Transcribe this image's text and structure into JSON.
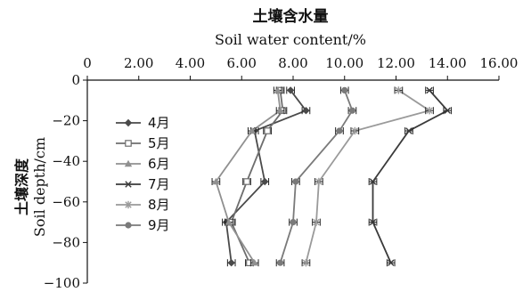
{
  "chart_data": {
    "type": "line",
    "title": "土壤含水量",
    "subtitle": "Soil water content/%",
    "ylabel_cn": "土壤深度",
    "ylabel_en": "Soil depth/cm",
    "xlim": [
      0,
      16
    ],
    "ylim": [
      -100,
      0
    ],
    "x_ticks": [
      0,
      2,
      4,
      6,
      8,
      10,
      12,
      14,
      16
    ],
    "x_tick_labels": [
      "0",
      "2.00",
      "4.00",
      "6.00",
      "8.00",
      "10.00",
      "12.00",
      "14.00",
      "16.00"
    ],
    "y_ticks": [
      0,
      -20,
      -40,
      -60,
      -80,
      -100
    ],
    "y_tick_labels": [
      "0",
      "−20",
      "−40",
      "−60",
      "−80",
      "−100"
    ],
    "x_axis_position": "top",
    "grid": false,
    "legend_position": "left",
    "error_bar": 0.15,
    "series": [
      {
        "name": "4月",
        "marker": "diamond",
        "color": "#4a4a4a",
        "points": [
          [
            7.9,
            -5
          ],
          [
            8.5,
            -15
          ],
          [
            6.5,
            -25
          ],
          [
            6.9,
            -50
          ],
          [
            5.4,
            -70
          ],
          [
            5.6,
            -90
          ]
        ]
      },
      {
        "name": "5月",
        "marker": "square",
        "color": "#6e6e6e",
        "points": [
          [
            7.5,
            -5
          ],
          [
            7.6,
            -15
          ],
          [
            7.0,
            -25
          ],
          [
            6.2,
            -50
          ],
          [
            5.6,
            -70
          ],
          [
            6.3,
            -90
          ]
        ]
      },
      {
        "name": "6月",
        "marker": "triangle",
        "color": "#909090",
        "points": [
          [
            7.4,
            -5
          ],
          [
            7.5,
            -15
          ],
          [
            6.4,
            -25
          ],
          [
            5.0,
            -50
          ],
          [
            5.5,
            -70
          ],
          [
            6.5,
            -90
          ]
        ]
      },
      {
        "name": "7月",
        "marker": "x",
        "color": "#3a3a3a",
        "points": [
          [
            13.3,
            -5
          ],
          [
            14.0,
            -15
          ],
          [
            12.5,
            -25
          ],
          [
            11.1,
            -50
          ],
          [
            11.1,
            -70
          ],
          [
            11.8,
            -90
          ]
        ]
      },
      {
        "name": "8月",
        "marker": "star",
        "color": "#9a9a9a",
        "points": [
          [
            12.1,
            -5
          ],
          [
            13.3,
            -15
          ],
          [
            10.4,
            -25
          ],
          [
            9.0,
            -50
          ],
          [
            8.9,
            -70
          ],
          [
            8.5,
            -90
          ]
        ]
      },
      {
        "name": "9月",
        "marker": "circle",
        "color": "#7a7a7a",
        "points": [
          [
            10.0,
            -5
          ],
          [
            10.3,
            -15
          ],
          [
            9.8,
            -25
          ],
          [
            8.1,
            -50
          ],
          [
            8.0,
            -70
          ],
          [
            7.5,
            -90
          ]
        ]
      }
    ]
  }
}
